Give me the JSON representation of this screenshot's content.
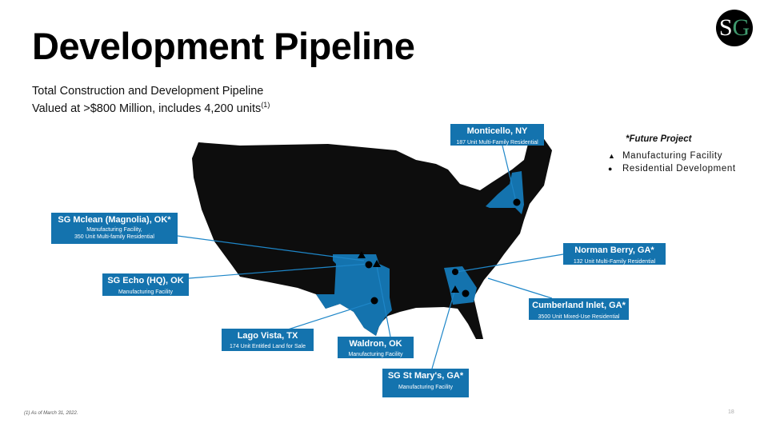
{
  "title": "Development Pipeline",
  "subtitle_line1": "Total Construction and Development Pipeline",
  "subtitle_line2": "Valued at >$800 Million, includes 4,200 units",
  "subtitle_sup": "(1)",
  "logo_text": "SG",
  "legend": {
    "future": "*Future Project",
    "manufacturing": "Manufacturing  Facility",
    "residential": "Residential  Development",
    "manufacturing_icon": "triangle-icon",
    "residential_icon": "circle-icon"
  },
  "callouts": [
    {
      "name": "SG Mclean (Magnolia), OK*",
      "desc": "Manufacturing Facility,\n350 Unit Multi-family Residential"
    },
    {
      "name": "SG Echo (HQ), OK",
      "desc": "Manufacturing Facility"
    },
    {
      "name": "Lago Vista, TX",
      "desc": "174 Unit Entitled Land for Sale"
    },
    {
      "name": "Waldron, OK",
      "desc": "Manufacturing  Facility"
    },
    {
      "name": "SG St Mary's, GA*",
      "desc": "Manufacturing Facility"
    },
    {
      "name": "Cumberland Inlet, GA*",
      "desc": "3500 Unit Mixed-Use Residential"
    },
    {
      "name": "Norman Berry, GA*",
      "desc": "132 Unit Multi-Family Residential"
    },
    {
      "name": "Monticello, NY",
      "desc": "187 Unit Multi-Family Residential"
    }
  ],
  "colors": {
    "accent": "#1473ae",
    "map": "#0d0d0d"
  },
  "footnote": "(1) As of March 31, 2022.",
  "page_number": "18"
}
